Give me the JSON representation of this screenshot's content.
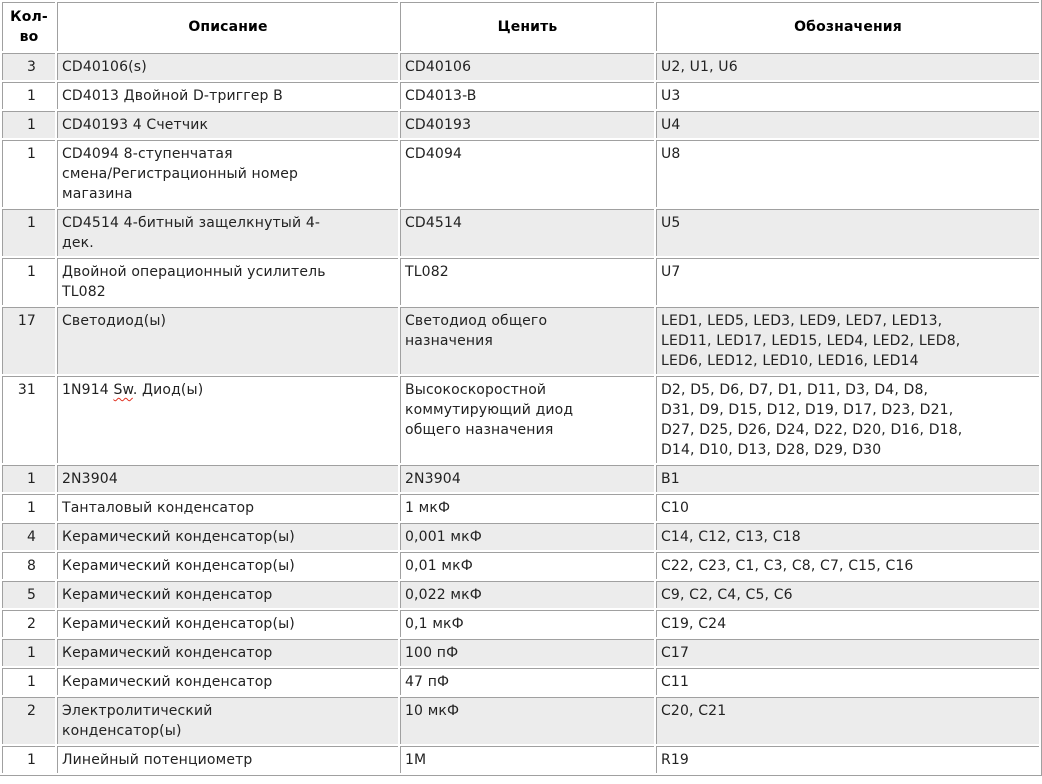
{
  "colors": {
    "row_stripe": "#ececec",
    "grid_border": "#a0a0a0",
    "text": "#222222",
    "header_text": "#000000",
    "spellcheck_underline": "#e03020",
    "background": "#ffffff"
  },
  "table": {
    "columns": [
      {
        "key": "qty",
        "label": "Кол-\nво"
      },
      {
        "key": "desc",
        "label": "Описание"
      },
      {
        "key": "value",
        "label": "Ценить"
      },
      {
        "key": "refs",
        "label": "Обозначения"
      }
    ],
    "rows": [
      {
        "qty": "3",
        "desc": "CD40106(s)",
        "value": "CD40106",
        "refs": "U2, U1, U6"
      },
      {
        "qty": "1",
        "desc": "CD4013 Двойной D-триггер B",
        "value": "CD4013-B",
        "refs": "U3"
      },
      {
        "qty": "1",
        "desc": "CD40193 4 Счетчик",
        "value": "CD40193",
        "refs": "U4"
      },
      {
        "qty": "1",
        "desc": "CD4094 8-ступенчатая\nсмена/Регистрационный номер\nмагазина",
        "value": "CD4094",
        "refs": "U8"
      },
      {
        "qty": "1",
        "desc": "CD4514 4-битный защелкнутый 4-\nдек.",
        "value": "CD4514",
        "refs": "U5"
      },
      {
        "qty": "1",
        "desc": "Двойной операционный усилитель\nTL082",
        "value": "TL082",
        "refs": "U7"
      },
      {
        "qty": "17",
        "desc": "Светодиод(ы)",
        "value": "Светодиод общего\nназначения",
        "refs": "LED1, LED5, LED3, LED9, LED7, LED13,\nLED11, LED17, LED15, LED4, LED2, LED8,\nLED6, LED12, LED10, LED16, LED14"
      },
      {
        "qty": "31",
        "desc_parts": [
          {
            "text": "1N914 "
          },
          {
            "text": "Sw",
            "misspelled": true
          },
          {
            "text": ". Диод(ы)"
          }
        ],
        "value": "Высокоскоростной\nкоммутирующий диод\nобщего назначения",
        "refs": "D2, D5, D6, D7, D1, D11, D3, D4, D8,\nD31, D9, D15, D12, D19, D17, D23, D21,\nD27, D25, D26, D24, D22, D20, D16, D18,\nD14, D10, D13, D28, D29, D30"
      },
      {
        "qty": "1",
        "desc": "2N3904",
        "value": "2N3904",
        "refs": "B1"
      },
      {
        "qty": "1",
        "desc": "Танталовый конденсатор",
        "value": "1 мкФ",
        "refs": "C10"
      },
      {
        "qty": "4",
        "desc": "Керамический конденсатор(ы)",
        "value": "0,001 мкФ",
        "refs": "C14, C12, C13, C18"
      },
      {
        "qty": "8",
        "desc": "Керамический конденсатор(ы)",
        "value": "0,01 мкФ",
        "refs": "C22, C23, C1, C3, C8, C7, C15, C16"
      },
      {
        "qty": "5",
        "desc": "Керамический конденсатор",
        "value": "0,022 мкФ",
        "refs": "C9, C2, C4, C5, C6"
      },
      {
        "qty": "2",
        "desc": "Керамический конденсатор(ы)",
        "value": "0,1 мкФ",
        "refs": "C19, C24"
      },
      {
        "qty": "1",
        "desc": "Керамический конденсатор",
        "value": "100 пФ",
        "refs": "C17"
      },
      {
        "qty": "1",
        "desc": "Керамический конденсатор",
        "value": "47 пФ",
        "refs": "C11"
      },
      {
        "qty": "2",
        "desc": "Электролитический\nконденсатор(ы)",
        "value": "10 мкФ",
        "refs": "C20, C21"
      },
      {
        "qty": "1",
        "desc": "Линейный потенциометр",
        "value": "1M",
        "refs": "R19"
      }
    ]
  }
}
